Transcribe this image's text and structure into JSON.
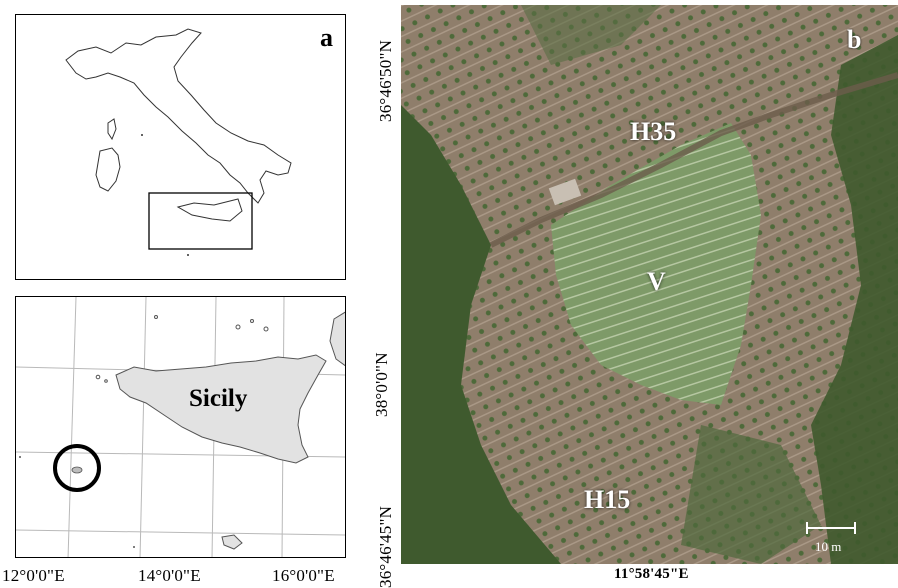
{
  "panel_a": {
    "letter": "a",
    "sicily_label": "Sicily",
    "lon_ticks": [
      "12°0'0\"E",
      "14°0'0\"E",
      "16°0'0\"E"
    ],
    "lat_tick": "38°0'0\"N"
  },
  "panel_b": {
    "letter": "b",
    "labels": {
      "h35": "H35",
      "v": "V",
      "h15": "H15"
    },
    "lat_top": "36°46'50\"N",
    "lat_bottom": "36°46'45\"N",
    "lon_bottom": "11°58'45\"E",
    "scale_bar": "10 m"
  },
  "colors": {
    "land_fill": "#e2e2e2",
    "highlight_circle": "#000000",
    "vegetation_dark": "#3f5a2e",
    "terrace_light": "#9c8a77"
  }
}
